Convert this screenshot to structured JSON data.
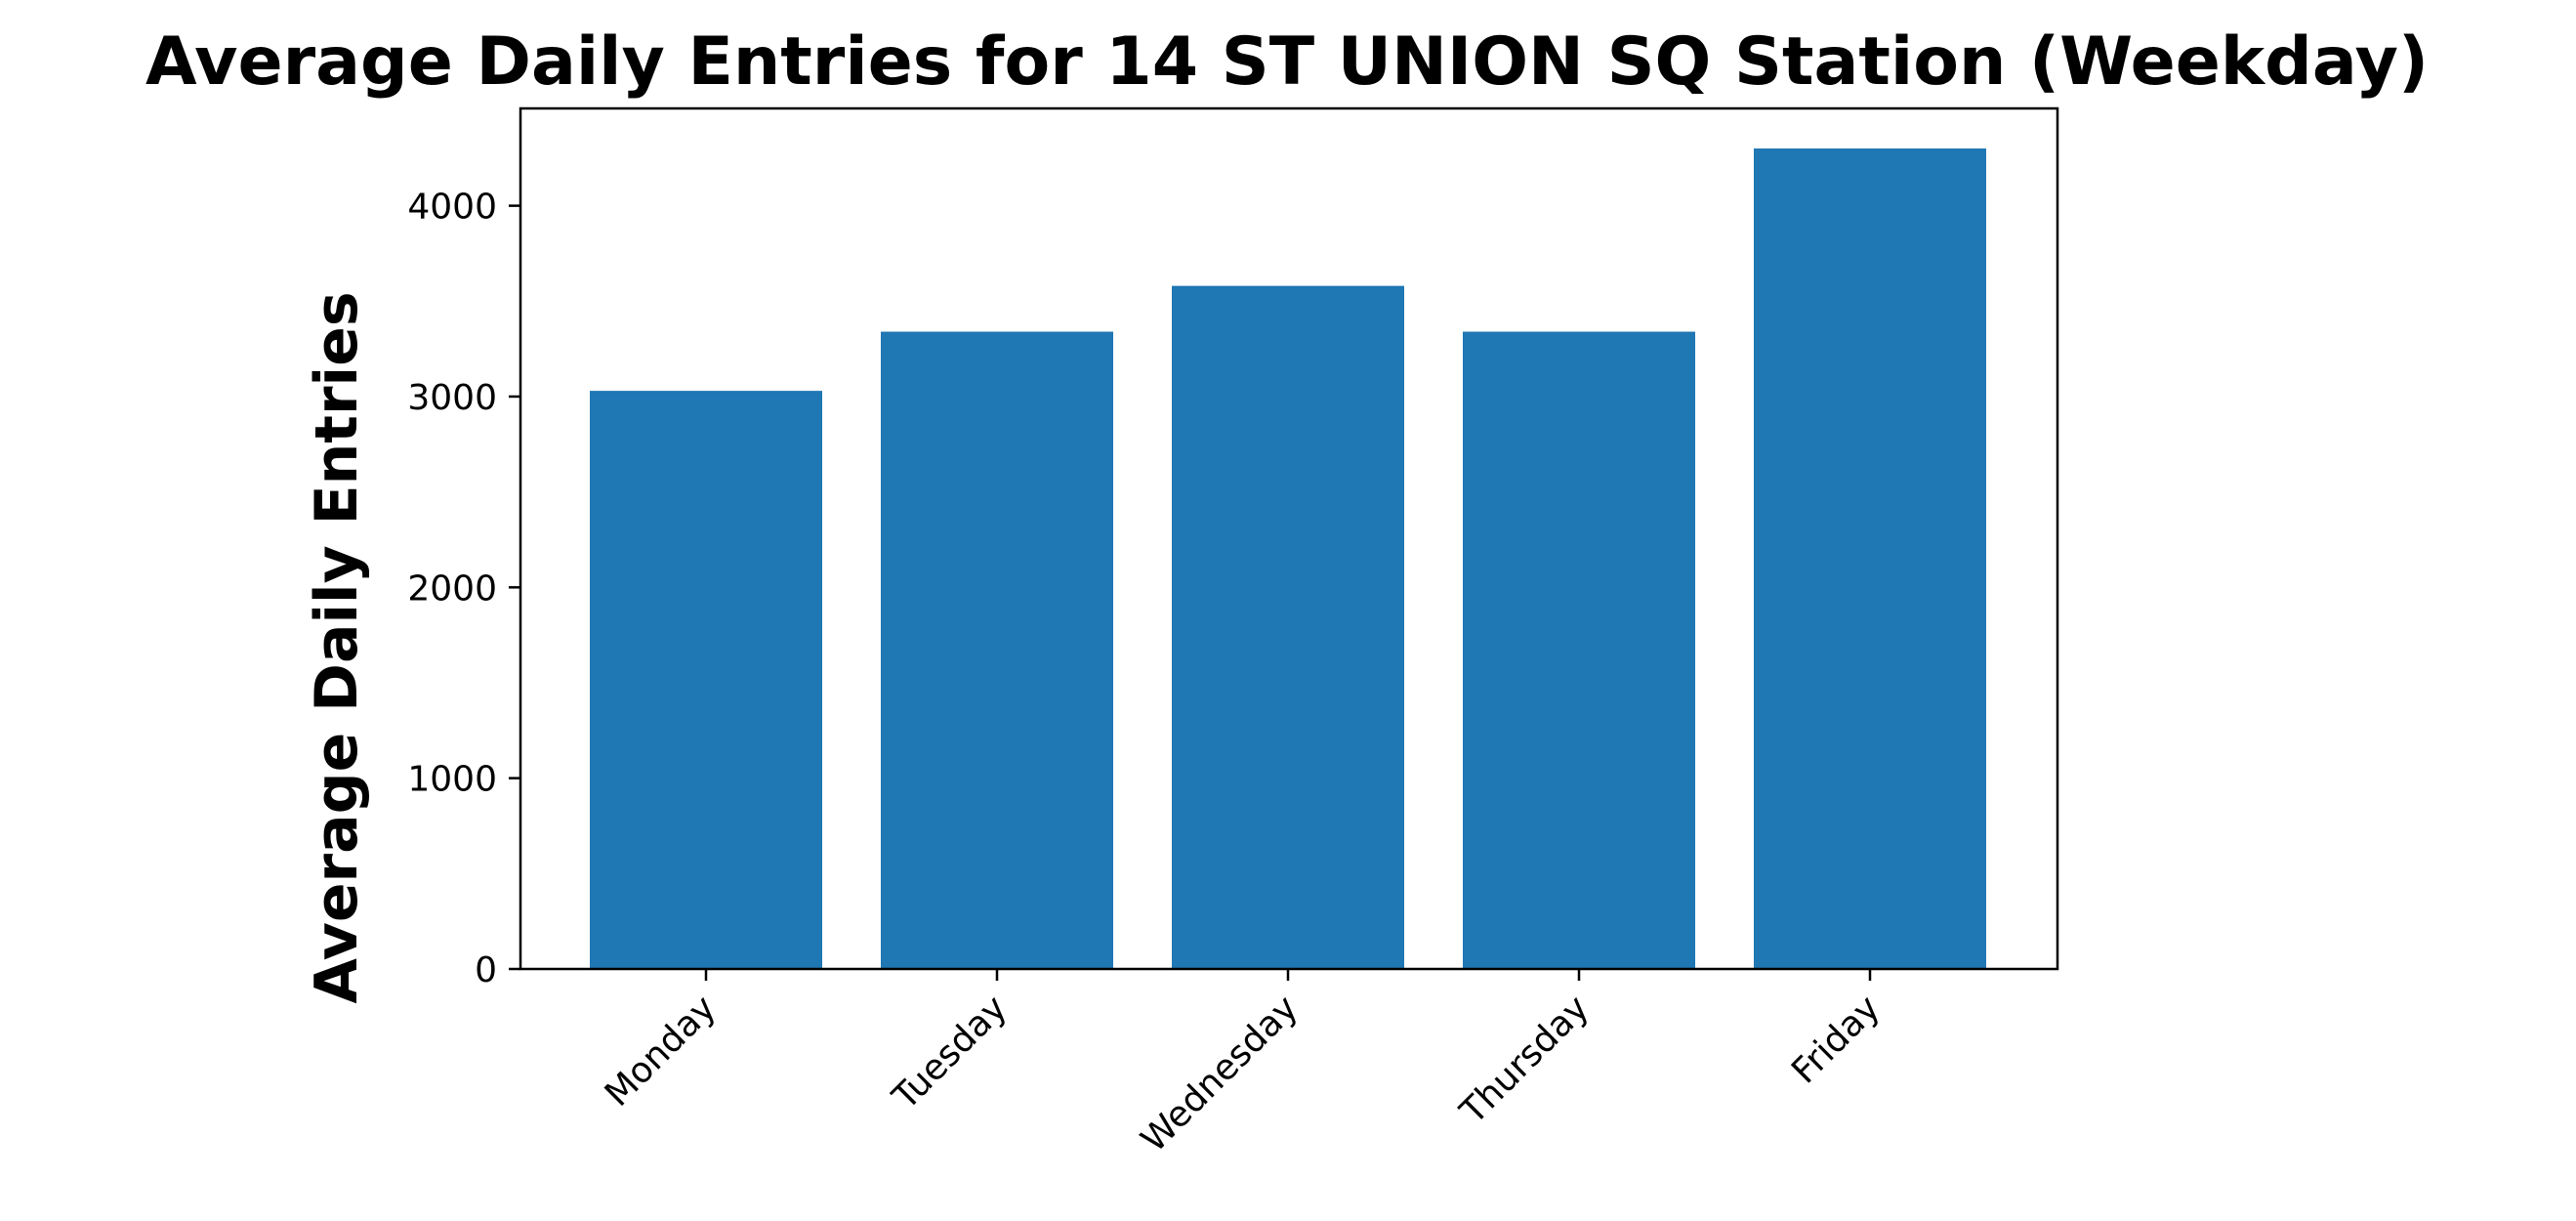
{
  "chart_data": {
    "type": "bar",
    "title": "Average Daily Entries for 14 ST UNION SQ Station (Weekday)",
    "xlabel": "",
    "ylabel": "Average Daily Entries",
    "categories": [
      "Monday",
      "Tuesday",
      "Wednesday",
      "Thursday",
      "Friday"
    ],
    "values": [
      3030,
      3340,
      3580,
      3340,
      4300
    ],
    "ylim": [
      0,
      4510
    ],
    "yticks": [
      0,
      1000,
      2000,
      3000,
      4000
    ],
    "grid": false,
    "legend": "none",
    "bar_color": "#1f77b4"
  }
}
